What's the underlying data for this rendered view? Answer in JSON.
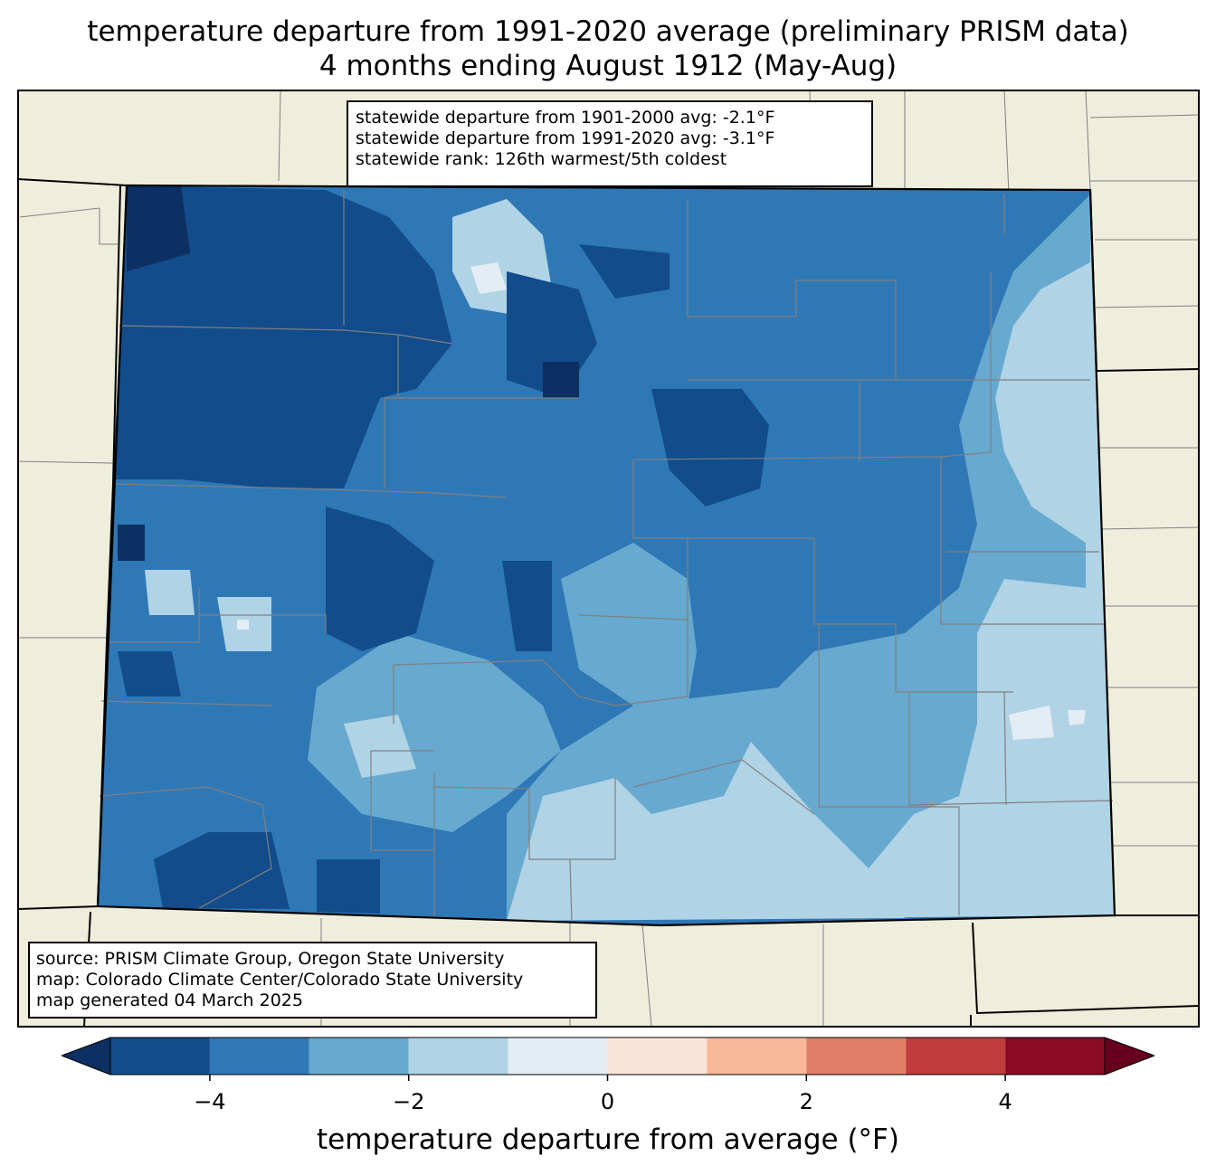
{
  "title": {
    "line1": "temperature departure from 1991-2020 average (preliminary PRISM data)",
    "line2": "4 months ending August 1912 (May-Aug)"
  },
  "stats": {
    "line1": "statewide departure from 1901-2000 avg: -2.1°F",
    "line2": "statewide departure from 1991-2020 avg: -3.1°F",
    "line3": "statewide rank: 126th warmest/5th coldest"
  },
  "source": {
    "line1": "source: PRISM Climate Group, Oregon State University",
    "line2": "map: Colorado Climate Center/Colorado State University",
    "line3": "map generated 04 March 2025"
  },
  "colorbar": {
    "title": "temperature departure from average (°F)",
    "min": -5,
    "max": 5,
    "ticks": [
      {
        "value": -4,
        "label": "−4"
      },
      {
        "value": -2,
        "label": "−2"
      },
      {
        "value": 0,
        "label": "0"
      },
      {
        "value": 2,
        "label": "2"
      },
      {
        "value": 4,
        "label": "4"
      }
    ],
    "under_color": "#0b3061",
    "over_color": "#67001f",
    "colors": [
      "#134c8b",
      "#2f78b6",
      "#67a9cf",
      "#b0d3e6",
      "#e4edf4",
      "#fae4d8",
      "#f7b799",
      "#e07f68",
      "#c13d3d",
      "#890b24"
    ]
  },
  "map_colors": {
    "land": "#efeedc",
    "border_state": "#000000",
    "border_county": "#808080"
  }
}
